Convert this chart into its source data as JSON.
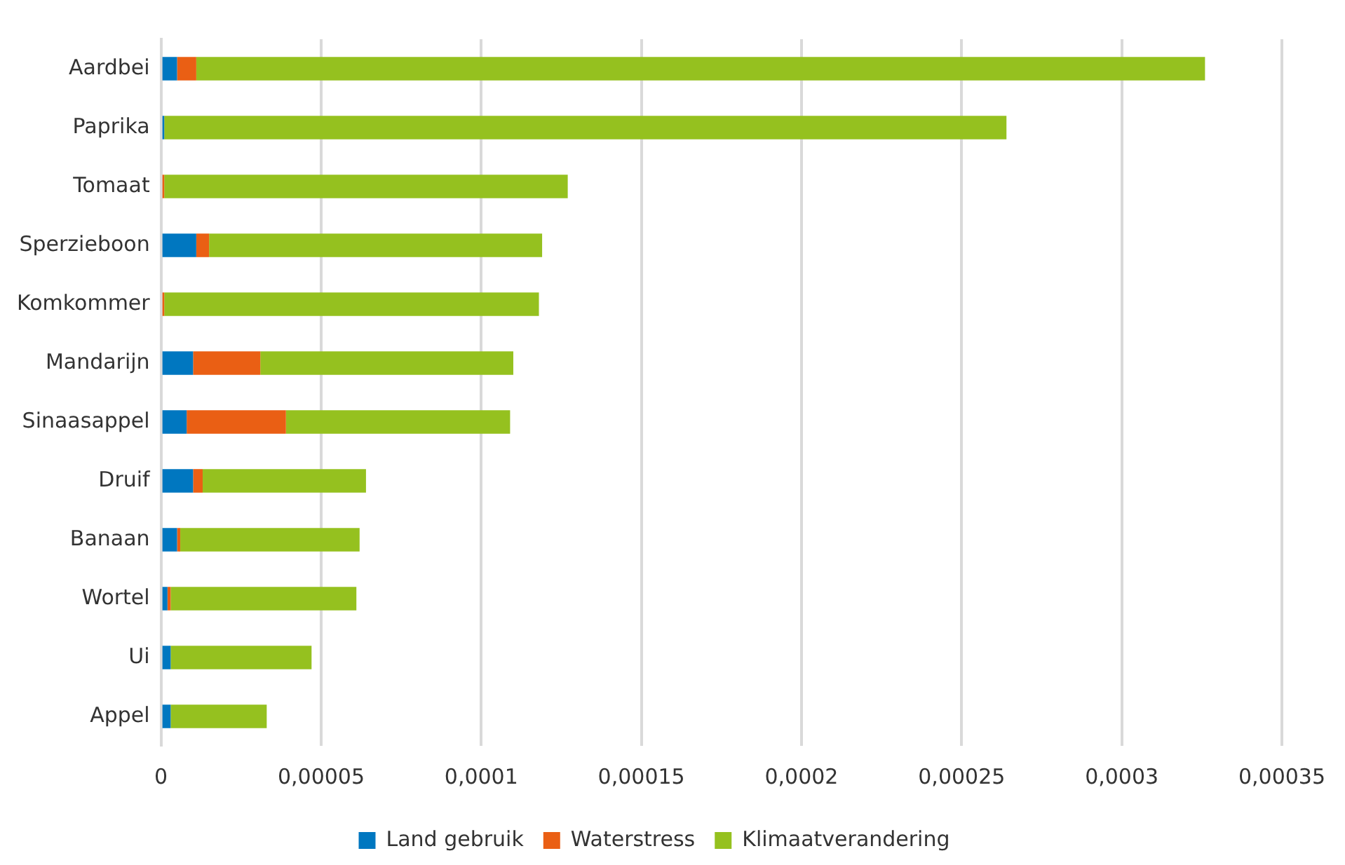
{
  "chart_data": {
    "type": "bar",
    "orientation": "horizontal",
    "stacked": true,
    "categories": [
      "Aardbei",
      "Paprika",
      "Tomaat",
      "Sperzieboon",
      "Komkommer",
      "Mandarijn",
      "Sinaasappel",
      "Druif",
      "Banaan",
      "Wortel",
      "Ui",
      "Appel"
    ],
    "series": [
      {
        "name": "Land gebruik",
        "color": "#0077c0",
        "values": [
          5e-06,
          1e-06,
          0,
          1.1e-05,
          0,
          1e-05,
          8e-06,
          1e-05,
          5e-06,
          2e-06,
          3e-06,
          3e-06
        ]
      },
      {
        "name": "Waterstress",
        "color": "#ea5f14",
        "values": [
          6e-06,
          0,
          1e-06,
          4e-06,
          1e-06,
          2.1e-05,
          3.1e-05,
          3e-06,
          1e-06,
          1e-06,
          0,
          0
        ]
      },
      {
        "name": "Klimaatverandering",
        "color": "#95c11f",
        "values": [
          0.000315,
          0.000263,
          0.000126,
          0.000104,
          0.000117,
          7.9e-05,
          7e-05,
          5.1e-05,
          5.6e-05,
          5.8e-05,
          4.4e-05,
          3e-05
        ]
      }
    ],
    "xlim": [
      0,
      0.00035
    ],
    "xticks": [
      0,
      {
        "value": 5e-05,
        "label": "0,00005"
      },
      {
        "value": 0.0001,
        "label": "0,0001"
      },
      {
        "value": 0.00015,
        "label": "0,00015"
      },
      {
        "value": 0.0002,
        "label": "0,0002"
      },
      {
        "value": 0.00025,
        "label": "0,00025"
      },
      {
        "value": 0.0003,
        "label": "0,0003"
      },
      {
        "value": 0.00035,
        "label": "0,00035"
      }
    ],
    "grid": "x",
    "legend": "bottom"
  }
}
